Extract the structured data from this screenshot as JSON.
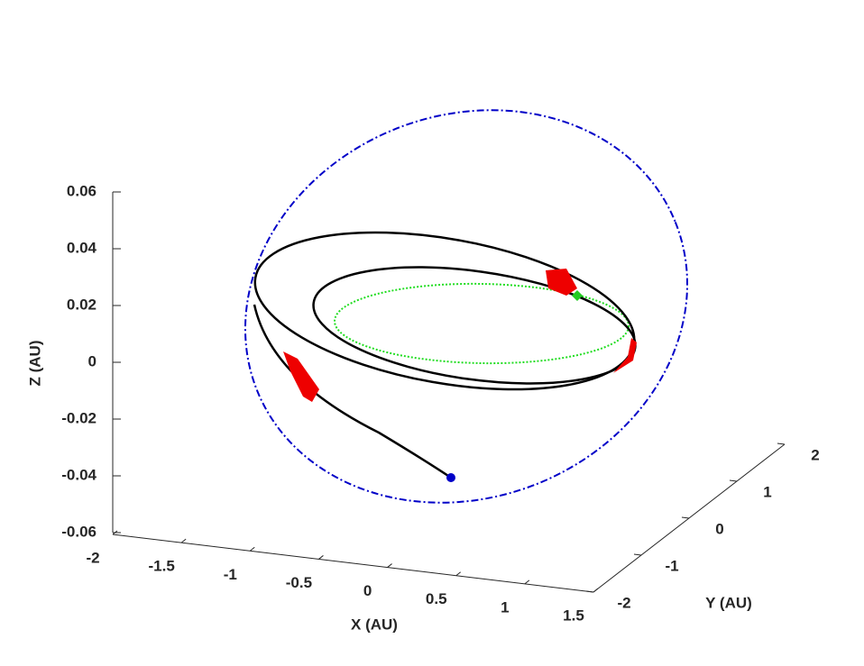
{
  "chart_data": {
    "type": "line3d",
    "xlabel": "X (AU)",
    "ylabel": "Y (AU)",
    "zlabel": "Z (AU)",
    "xlim": [
      -2,
      1.5
    ],
    "xticks": [
      -2,
      -1.5,
      -1,
      -0.5,
      0,
      0.5,
      1,
      1.5
    ],
    "ylim": [
      -2,
      2
    ],
    "yticks": [
      -2,
      -1,
      0,
      1,
      2
    ],
    "zlim": [
      -0.06,
      0.06
    ],
    "zticks": [
      -0.06,
      -0.04,
      -0.02,
      0,
      0.02,
      0.04,
      0.06
    ]
  }
}
